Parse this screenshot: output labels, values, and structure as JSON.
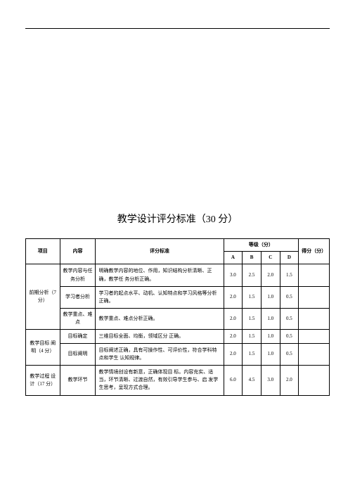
{
  "title": "教学设计评分标准（30 分）",
  "headers": {
    "project": "项目",
    "content": "内容",
    "criteria": "评分标准",
    "grade_group": "等级（分）",
    "score": "得分（分）",
    "A": "A",
    "B": "B",
    "C": "C",
    "D": "D"
  },
  "sections": [
    {
      "project": "前期分析（7 分）",
      "rows": [
        {
          "item": "教学内容与任务分析",
          "crit": "明确教学内容的地位、作用，知识结构分析清晰、正确，教学任 务分析正确。",
          "A": "3.0",
          "B": "2.5",
          "C": "2.0",
          "D": "1.5"
        },
        {
          "item": "学习者分析",
          "crit": "学习者的起点水平、动机、认知特点和学习风格等分析正确。",
          "A": "2.0",
          "B": "1.5",
          "C": "1.0",
          "D": "0.5"
        },
        {
          "item": "教学重点、难点",
          "crit": "教学重点、难点分析正确。",
          "A": "2.0",
          "B": "1.5",
          "C": "1.0",
          "D": "0.5"
        }
      ]
    },
    {
      "project": "教学目标 阐明（4 分）",
      "rows": [
        {
          "item": "目标确定",
          "crit": "三维目标全面、均衡，领域区分 正确。",
          "A": "2.0",
          "B": "1.5",
          "C": "1.0",
          "D": "0.5"
        },
        {
          "item": "目标阐明",
          "crit": "目标阐述正确，具有可操作性、可评价性，符合学科特点和学生 认知规律。",
          "A": "2.0",
          "B": "1.5",
          "C": "1.0",
          "D": "0.5"
        }
      ]
    },
    {
      "project": "教学过程 设 计（17 分）",
      "rows": [
        {
          "item": "教学环节",
          "crit": "教学情境创设有新意，正确体现目 标。内容充实、适当，环节清晰、过渡自然，有效引导学生参与、启 发学生思考，呈现方式合理。",
          "A": "6.0",
          "B": "4.5",
          "C": "3.0",
          "D": "2.0"
        }
      ]
    }
  ]
}
